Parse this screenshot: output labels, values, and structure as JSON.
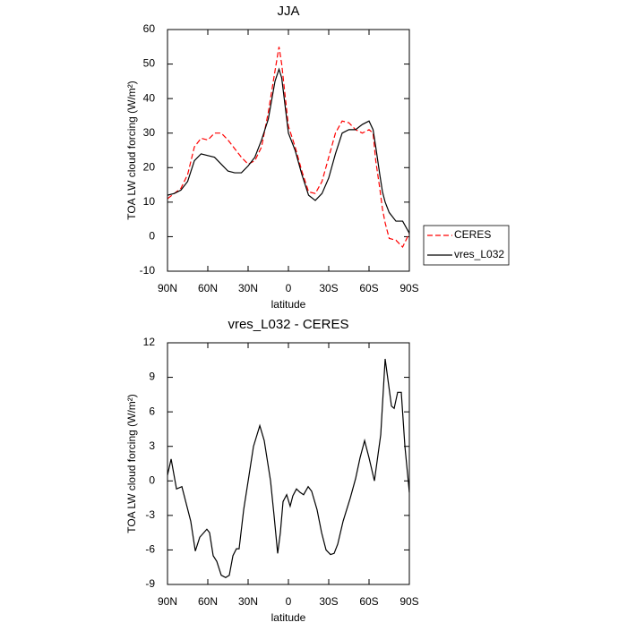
{
  "chart_data": [
    {
      "type": "line",
      "title": "JJA",
      "ylabel": "TOA LW cloud forcing (W/m²)",
      "xlabel": "latitude",
      "xlim": [
        90,
        -90
      ],
      "xticks": [
        {
          "value": 90,
          "label": "90N"
        },
        {
          "value": 60,
          "label": "60N"
        },
        {
          "value": 30,
          "label": "30N"
        },
        0,
        {
          "value": -30,
          "label": "30S"
        },
        {
          "value": -60,
          "label": "60S"
        },
        {
          "value": -90,
          "label": "90S"
        }
      ],
      "ylim": [
        -10,
        60
      ],
      "yticks": [
        -10,
        0,
        10,
        20,
        30,
        40,
        50,
        60
      ],
      "x": [
        90,
        85,
        80,
        75,
        70,
        65,
        60,
        55,
        50,
        45,
        40,
        35,
        30,
        25,
        20,
        15,
        10,
        7,
        5,
        0,
        -5,
        -10,
        -15,
        -20,
        -25,
        -30,
        -35,
        -40,
        -45,
        -50,
        -55,
        -60,
        -63,
        -65,
        -68,
        -70,
        -72,
        -75,
        -80,
        -85,
        -90
      ],
      "series": [
        {
          "name": "CERES",
          "color": "#ff0000",
          "dash": true,
          "values": [
            11,
            12.5,
            14,
            18,
            26,
            28.5,
            28,
            30,
            30,
            28,
            25.5,
            23,
            21,
            22,
            26,
            36,
            48,
            55,
            50,
            32,
            26,
            19,
            13,
            12.5,
            16,
            23,
            30,
            33.5,
            33,
            31,
            30,
            31,
            30,
            22,
            14,
            8,
            4,
            -0.5,
            -1,
            -3,
            1
          ]
        },
        {
          "name": "vres_L032",
          "color": "#000000",
          "dash": false,
          "values": [
            12,
            12.5,
            13.5,
            16,
            22,
            24,
            23.5,
            23,
            21,
            19,
            18.5,
            18.5,
            20.5,
            23,
            28,
            34,
            45,
            48.5,
            46,
            30,
            25,
            18,
            12,
            10.5,
            12.5,
            17,
            24,
            30,
            31,
            31,
            32.5,
            33.5,
            31,
            26,
            18,
            13,
            10,
            7,
            4.5,
            4.5,
            1
          ]
        }
      ]
    },
    {
      "type": "line",
      "title": "vres_L032 - CERES",
      "ylabel": "TOA LW cloud forcing (W/m²)",
      "xlabel": "latitude",
      "xlim": [
        90,
        -90
      ],
      "xticks": [
        {
          "value": 90,
          "label": "90N"
        },
        {
          "value": 60,
          "label": "60N"
        },
        {
          "value": 30,
          "label": "30N"
        },
        0,
        {
          "value": -30,
          "label": "30S"
        },
        {
          "value": -60,
          "label": "60S"
        },
        {
          "value": -90,
          "label": "90S"
        }
      ],
      "ylim": [
        -9,
        12
      ],
      "yticks": [
        -9,
        -6,
        -3,
        0,
        3,
        6,
        9,
        12
      ],
      "x": [
        90,
        87.3,
        83.3,
        79.3,
        72.7,
        69.3,
        66,
        60.7,
        58.7,
        56,
        53.3,
        50,
        46.7,
        44,
        41.3,
        38.7,
        36.7,
        33.3,
        29.3,
        26,
        21.3,
        18,
        13.3,
        10.7,
        8,
        6,
        4,
        1.3,
        -1.3,
        -3.3,
        -6,
        -8.7,
        -11.3,
        -14.7,
        -17.3,
        -21.3,
        -24.7,
        -28,
        -31.3,
        -34,
        -36.7,
        -40.7,
        -46,
        -50,
        -53.3,
        -56.7,
        -60,
        -64,
        -68.7,
        -72,
        -76.7,
        -78.7,
        -81.3,
        -84,
        -86.7,
        -90
      ],
      "color": "#000000",
      "values": [
        0.5,
        1.9,
        -0.7,
        -0.5,
        -3.5,
        -6.1,
        -4.9,
        -4.2,
        -4.5,
        -6.5,
        -7,
        -8.2,
        -8.4,
        -8.2,
        -6.5,
        -5.9,
        -5.9,
        -2.5,
        0.5,
        3,
        4.8,
        3.5,
        0,
        -3,
        -6.3,
        -4.5,
        -1.8,
        -1.2,
        -2.2,
        -1.3,
        -0.7,
        -1,
        -1.2,
        -0.5,
        -0.9,
        -2.5,
        -4.5,
        -6,
        -6.4,
        -6.3,
        -5.5,
        -3.5,
        -1.5,
        0.2,
        2,
        3.5,
        2,
        0,
        4,
        10.6,
        6.5,
        6.3,
        7.7,
        7.7,
        3,
        -1
      ]
    }
  ]
}
